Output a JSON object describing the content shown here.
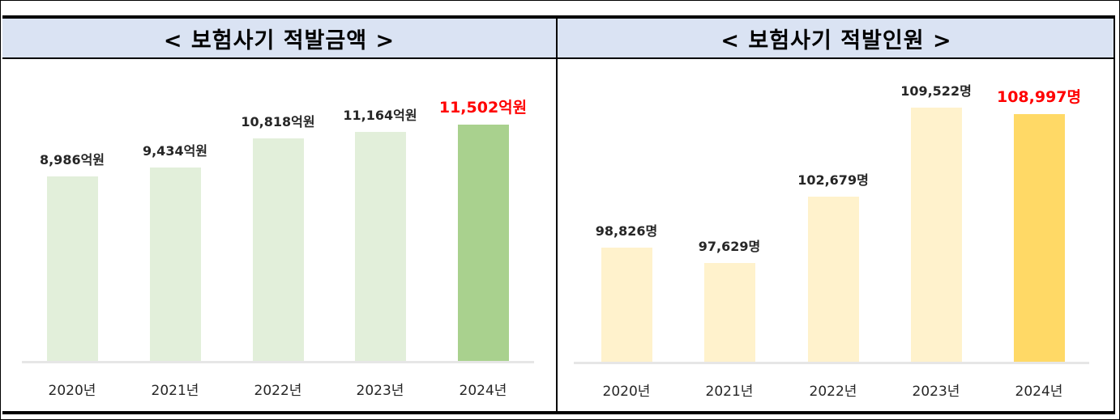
{
  "left_chart": {
    "title": "< 보험사기 적발금액 >",
    "categories": [
      "2020년",
      "2021년",
      "2022년",
      "2023년",
      "2024년"
    ],
    "labels": [
      "8,986억원",
      "9,434억원",
      "10,818억원",
      "11,164억원",
      "11,502억원"
    ]
  },
  "right_chart": {
    "title": "< 보험사기 적발인원 >",
    "categories": [
      "2020년",
      "2021년",
      "2022년",
      "2023년",
      "2024년"
    ],
    "labels": [
      "98,826명",
      "97,629명",
      "102,679명",
      "109,522명",
      "108,997명"
    ]
  },
  "colors": {
    "header_bg": "#dae3f3",
    "left_bar": "#e2efda",
    "left_bar_highlight": "#a9d18e",
    "right_bar": "#fff2cc",
    "right_bar_highlight": "#ffd966",
    "highlight_text": "#ff0000"
  },
  "chart_data": [
    {
      "type": "bar",
      "title": "< 보험사기 적발금액 >",
      "categories": [
        "2020년",
        "2021년",
        "2022년",
        "2023년",
        "2024년"
      ],
      "values": [
        8986,
        9434,
        10818,
        11164,
        11502
      ],
      "unit": "억원",
      "xlabel": "",
      "ylabel": "",
      "grid": false,
      "highlight": "2024년"
    },
    {
      "type": "bar",
      "title": "< 보험사기 적발인원 >",
      "categories": [
        "2020년",
        "2021년",
        "2022년",
        "2023년",
        "2024년"
      ],
      "values": [
        98826,
        97629,
        102679,
        109522,
        108997
      ],
      "unit": "명",
      "xlabel": "",
      "ylabel": "",
      "grid": false,
      "highlight": "2024년"
    }
  ]
}
